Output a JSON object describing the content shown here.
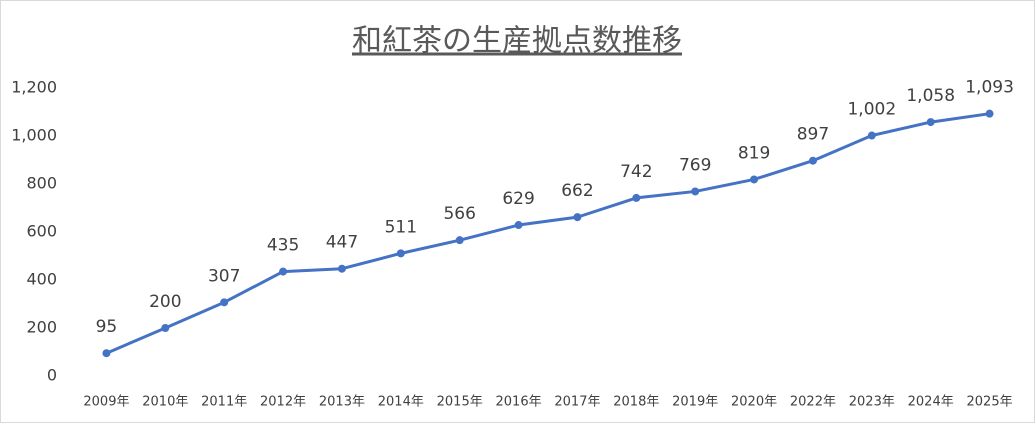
{
  "chart_data": {
    "type": "line",
    "title": "和紅茶の生産拠点数推移",
    "categories": [
      "2009年",
      "2010年",
      "2011年",
      "2012年",
      "2013年",
      "2014年",
      "2015年",
      "2016年",
      "2017年",
      "2018年",
      "2019年",
      "2020年",
      "2022年",
      "2023年",
      "2024年",
      "2025年"
    ],
    "values": [
      95,
      200,
      307,
      435,
      447,
      511,
      566,
      629,
      662,
      742,
      769,
      819,
      897,
      1002,
      1058,
      1093
    ],
    "value_labels": [
      "95",
      "200",
      "307",
      "435",
      "447",
      "511",
      "566",
      "629",
      "662",
      "742",
      "769",
      "819",
      "897",
      "1,002",
      "1,058",
      "1,093"
    ],
    "color": "#4472c4",
    "ylim": [
      0,
      1200
    ],
    "yticks": [
      0,
      200,
      400,
      600,
      800,
      {
        "value": 1000,
        "label": "1,000"
      },
      {
        "value": 1200,
        "label": "1,200"
      }
    ],
    "grid": false
  }
}
